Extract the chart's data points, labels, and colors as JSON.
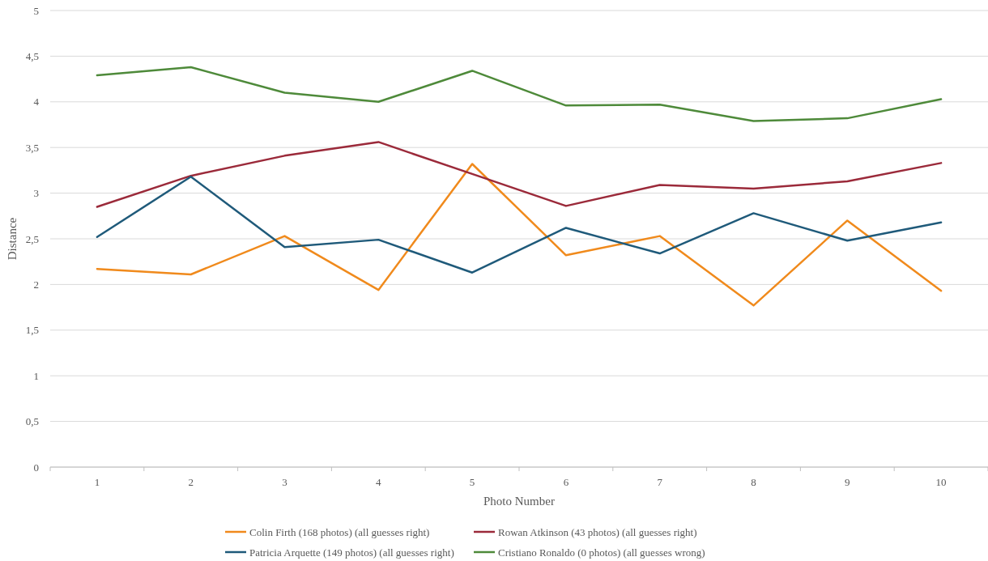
{
  "chart_data": {
    "type": "line",
    "xlabel": "Photo Number",
    "ylabel": "Distance",
    "categories": [
      "1",
      "2",
      "3",
      "4",
      "5",
      "6",
      "7",
      "8",
      "9",
      "10"
    ],
    "ylim": [
      0,
      5
    ],
    "yticks": [
      0,
      {
        "value": 0.5,
        "label": "0,5"
      },
      1,
      {
        "value": 1.5,
        "label": "1,5"
      },
      2,
      {
        "value": 2.5,
        "label": "2,5"
      },
      3,
      {
        "value": 3.5,
        "label": "3,5"
      },
      4,
      {
        "value": 4.5,
        "label": "4,5"
      },
      5
    ],
    "grid": "y",
    "legend": "bottom",
    "marker": "none",
    "line_style": "solid",
    "series": [
      {
        "name": "Colin Firth (168 photos) (all guesses right)",
        "color": "#f08a1c",
        "values": [
          2.17,
          2.11,
          2.53,
          1.94,
          3.32,
          2.32,
          2.53,
          1.77,
          2.7,
          1.93
        ]
      },
      {
        "name": "Rowan Atkinson (43 photos) (all guesses right)",
        "color": "#9b2a3a",
        "values": [
          2.85,
          3.19,
          3.41,
          3.56,
          3.21,
          2.86,
          3.09,
          3.05,
          3.13,
          3.33
        ]
      },
      {
        "name": "Patricia Arquette (149 photos) (all guesses right)",
        "color": "#1f5a7a",
        "values": [
          2.52,
          3.18,
          2.41,
          2.49,
          2.13,
          2.62,
          2.34,
          2.78,
          2.48,
          2.68
        ]
      },
      {
        "name": "Cristiano Ronaldo (0 photos) (all guesses wrong)",
        "color": "#4e8a3a",
        "values": [
          4.29,
          4.38,
          4.1,
          4.0,
          4.34,
          3.96,
          3.97,
          3.79,
          3.82,
          4.03
        ]
      }
    ]
  }
}
